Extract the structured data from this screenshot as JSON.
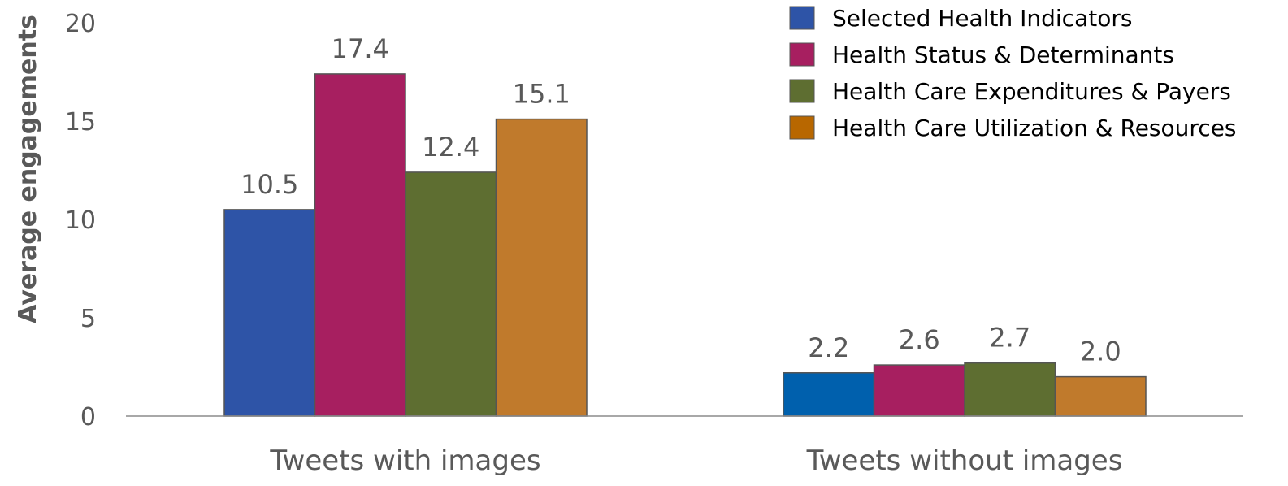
{
  "chart_data": {
    "type": "bar",
    "categories": [
      "Tweets with images",
      "Tweets without images"
    ],
    "series": [
      {
        "name": "Selected Health Indicators",
        "values": [
          10.5,
          2.2
        ],
        "colors": [
          "#2e54a7",
          "#0060ad"
        ]
      },
      {
        "name": "Health Status & Determinants",
        "values": [
          17.4,
          2.6
        ],
        "colors": [
          "#a71f60",
          "#a71f60"
        ]
      },
      {
        "name": "Health Care Expenditures & Payers",
        "values": [
          12.4,
          2.7
        ],
        "colors": [
          "#5e6e31",
          "#5e6e31"
        ]
      },
      {
        "name": "Health Care Utilization & Resources",
        "values": [
          15.1,
          2.0
        ],
        "colors": [
          "#c07a2c",
          "#c07a2c"
        ]
      }
    ],
    "legend_colors": [
      "#2e54a7",
      "#a71f60",
      "#5e6e31",
      "#b86700"
    ],
    "data_labels": [
      [
        "10.5",
        "2.2"
      ],
      [
        "17.4",
        "2.6"
      ],
      [
        "12.4",
        "2.7"
      ],
      [
        "15.1",
        "2.0"
      ]
    ],
    "ylabel": "Average engagements",
    "ylim": [
      0,
      20
    ],
    "yticks": [
      0,
      5,
      10,
      15,
      20
    ],
    "grid": false,
    "legend_position": "top-right"
  }
}
